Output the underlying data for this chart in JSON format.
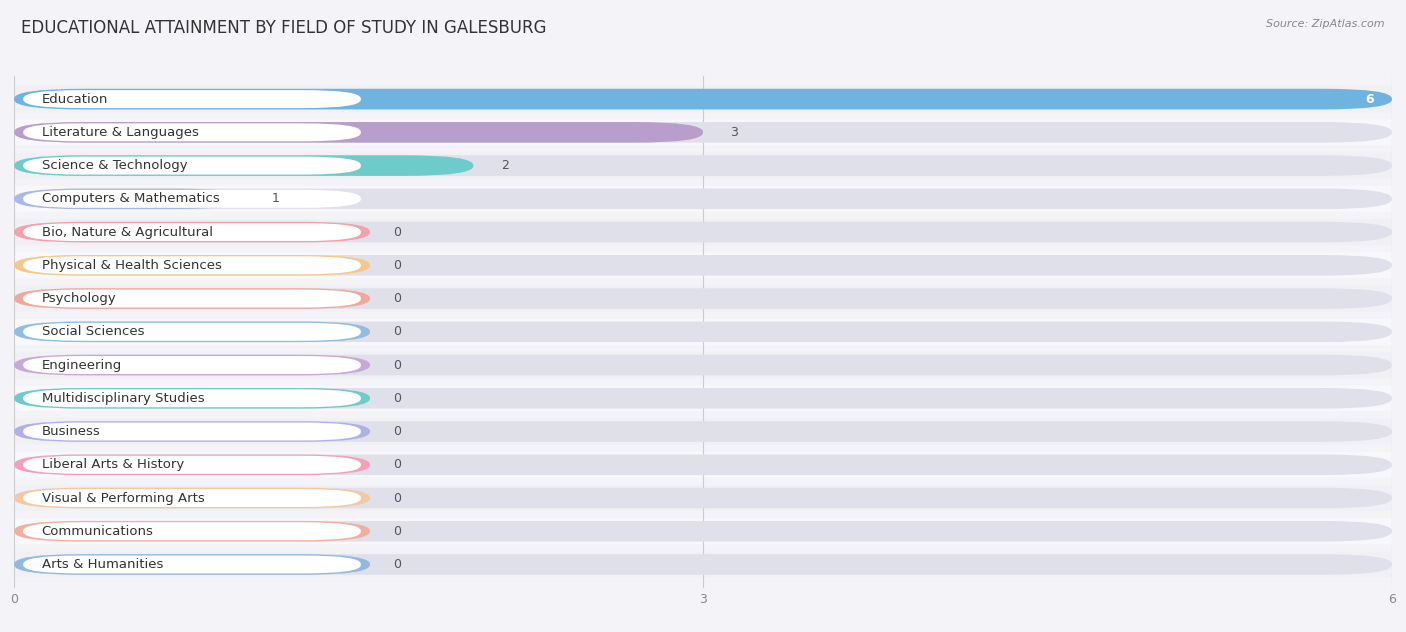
{
  "title": "EDUCATIONAL ATTAINMENT BY FIELD OF STUDY IN GALESBURG",
  "source": "Source: ZipAtlas.com",
  "categories": [
    "Education",
    "Literature & Languages",
    "Science & Technology",
    "Computers & Mathematics",
    "Bio, Nature & Agricultural",
    "Physical & Health Sciences",
    "Psychology",
    "Social Sciences",
    "Engineering",
    "Multidisciplinary Studies",
    "Business",
    "Liberal Arts & History",
    "Visual & Performing Arts",
    "Communications",
    "Arts & Humanities"
  ],
  "values": [
    6,
    3,
    2,
    1,
    0,
    0,
    0,
    0,
    0,
    0,
    0,
    0,
    0,
    0,
    0
  ],
  "bar_colors": [
    "#6fb3e0",
    "#b89eca",
    "#6dcbca",
    "#a8b8e8",
    "#f5a0aa",
    "#f5c88a",
    "#f0a89a",
    "#90bde0",
    "#c8a8d8",
    "#6dcbca",
    "#b0b0e8",
    "#f5a0b8",
    "#f5c8a0",
    "#f0b0a0",
    "#90b8e0"
  ],
  "label_bg": "#ffffff",
  "row_bg_even": "#f0f0f5",
  "row_bg_odd": "#f8f8fc",
  "xlim": [
    0,
    6
  ],
  "xticks": [
    0,
    3,
    6
  ],
  "background_color": "#f4f4f8",
  "title_fontsize": 12,
  "label_fontsize": 9.5,
  "tick_fontsize": 9,
  "value_fontsize": 9
}
